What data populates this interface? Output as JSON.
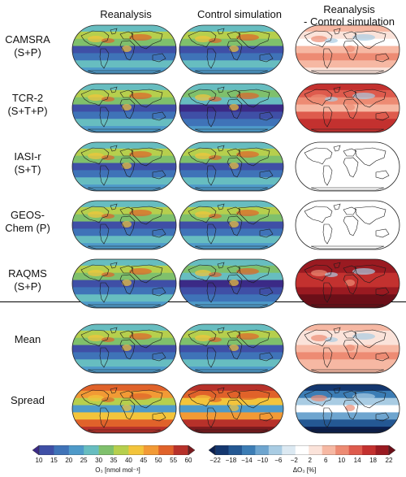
{
  "columns": [
    "Reanalysis",
    "Control simulation",
    "Reanalysis\n - Control simulation"
  ],
  "rows": [
    {
      "label": "CAMSRA\n(S+P)"
    },
    {
      "label": "TCR-2\n(S+T+P)"
    },
    {
      "label": "IASI-r\n(S+T)"
    },
    {
      "label": "GEOS-\nChem (P)"
    },
    {
      "label": "RAQMS\n(S+P)"
    },
    {
      "label": "Mean"
    },
    {
      "label": "Spread"
    }
  ],
  "colorbar_o3": {
    "ticks": [
      "10",
      "15",
      "20",
      "25",
      "30",
      "35",
      "40",
      "45",
      "50",
      "55",
      "60"
    ],
    "label": "O₃ [nmol mol⁻¹]",
    "colors": [
      "#3b2a86",
      "#3f4fa6",
      "#3f73b8",
      "#4e9ac9",
      "#67bdc0",
      "#7fc06c",
      "#b6cf4d",
      "#f3c43b",
      "#f29a35",
      "#e0622a",
      "#b7312a",
      "#7a1a1e"
    ]
  },
  "colorbar_diff": {
    "ticks": [
      "−22",
      "−18",
      "−14",
      "−10",
      "−6",
      "−2",
      "2",
      "6",
      "10",
      "14",
      "18",
      "22"
    ],
    "label": "ΔO₃ [%]",
    "colors": [
      "#0b1f4f",
      "#14376f",
      "#245893",
      "#3c7db5",
      "#6ea5cf",
      "#a9cce3",
      "#dce9f2",
      "#ffffff",
      "#fbe3da",
      "#f6b8a3",
      "#ed8b73",
      "#de5b4d",
      "#c3312f",
      "#9a1a21",
      "#6b0f18"
    ]
  },
  "chart_data": {
    "type": "heatmap",
    "title": "",
    "panels": [
      {
        "row": "CAMSRA (S+P)",
        "columns": [
          "Reanalysis",
          "Control simulation",
          "Reanalysis - Control simulation"
        ]
      },
      {
        "row": "TCR-2 (S+T+P)",
        "columns": [
          "Reanalysis",
          "Control simulation",
          "Reanalysis - Control simulation"
        ]
      },
      {
        "row": "IASI-r (S+T)",
        "columns": [
          "Reanalysis",
          "Control simulation",
          "Reanalysis - Control simulation"
        ]
      },
      {
        "row": "GEOS-Chem (P)",
        "columns": [
          "Reanalysis",
          "Control simulation",
          "Reanalysis - Control simulation"
        ]
      },
      {
        "row": "RAQMS (S+P)",
        "columns": [
          "Reanalysis",
          "Control simulation",
          "Reanalysis - Control simulation"
        ]
      },
      {
        "row": "Mean",
        "columns": [
          "Reanalysis",
          "Control simulation",
          "Reanalysis - Control simulation"
        ]
      },
      {
        "row": "Spread",
        "columns": [
          "Reanalysis",
          "Control simulation",
          "Reanalysis - Control simulation"
        ]
      }
    ],
    "o3_range": [
      10,
      60
    ],
    "diff_range_percent": [
      -22,
      22
    ]
  }
}
